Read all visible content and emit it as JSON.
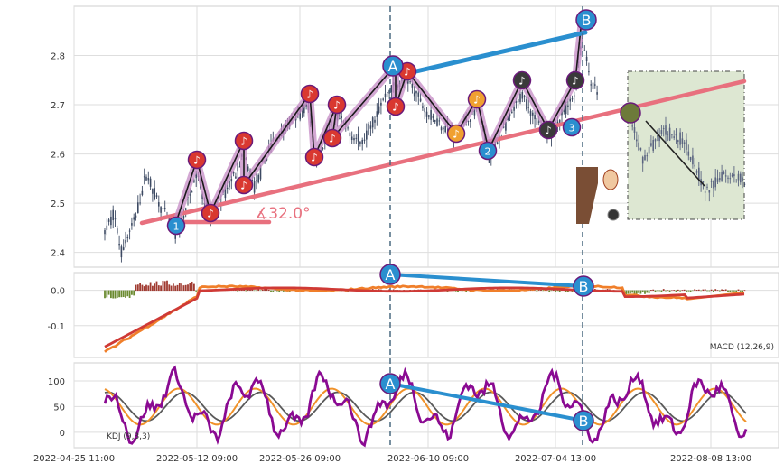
{
  "chart_data": [
    {
      "type": "candlestick",
      "panel": "price",
      "ylim": [
        2.37,
        2.9
      ],
      "yticks": [
        2.4,
        2.5,
        2.6,
        2.7,
        2.8
      ],
      "grid": true,
      "series_points": {
        "zigzag_x": [
          "2022-05-10",
          "2022-05-13",
          "2022-05-16",
          "2022-05-19",
          "2022-05-22",
          "2022-05-26",
          "2022-05-29",
          "2022-05-31",
          "2022-06-01",
          "2022-06-04",
          "2022-06-07",
          "2022-06-10",
          "2022-06-14",
          "2022-06-18",
          "2022-06-21",
          "2022-06-24",
          "2022-06-27",
          "2022-06-30",
          "2022-07-04"
        ],
        "zigzag_y": [
          2.42,
          2.56,
          2.46,
          2.6,
          2.52,
          2.69,
          2.58,
          2.68,
          2.61,
          2.71,
          2.68,
          2.76,
          2.72,
          2.63,
          2.68,
          2.58,
          2.72,
          2.63,
          2.73
        ]
      },
      "annotations": {
        "angle_label": "∡32.0°",
        "point_a": "A",
        "point_b": "B",
        "wave_label_1": "1",
        "wave_label_2": "2",
        "wave_label_3": "3"
      }
    },
    {
      "type": "line",
      "panel": "macd",
      "label": "MACD (12,26,9)",
      "ylim": [
        -0.19,
        0.05
      ],
      "yticks": [
        0.0,
        -0.1
      ],
      "annotations": {
        "point_a": "A",
        "point_b": "B"
      }
    },
    {
      "type": "line",
      "panel": "kdj",
      "label": "KDJ (9,3,3)",
      "ylim": [
        -30,
        135
      ],
      "yticks": [
        100,
        50,
        0
      ],
      "annotations": {
        "point_a": "A",
        "point_b": "B"
      }
    }
  ],
  "x_axis": {
    "tick_labels": [
      "2022-04-25 11:00",
      "2022-05-12 09:00",
      "2022-05-26 09:00",
      "2022-06-10 09:00",
      "2022-07-04 13:00",
      "2022-08-08 13:00"
    ]
  },
  "colors": {
    "candle": "#3d4a63",
    "trend_pink": "#e8707e",
    "ab_blue": "#2a8fcf",
    "zigzag": "#1a1a1a",
    "zigzag_glow": "#c48ac4",
    "macd_orange": "#f07f2a",
    "macd_red": "#cf3a36",
    "kdj_purple": "#8a0a92",
    "kdj_orange": "#f0922a",
    "kdj_gray": "#5a5a5a",
    "dashed": "#4a6a80",
    "box_fill": "#dde7d2"
  }
}
